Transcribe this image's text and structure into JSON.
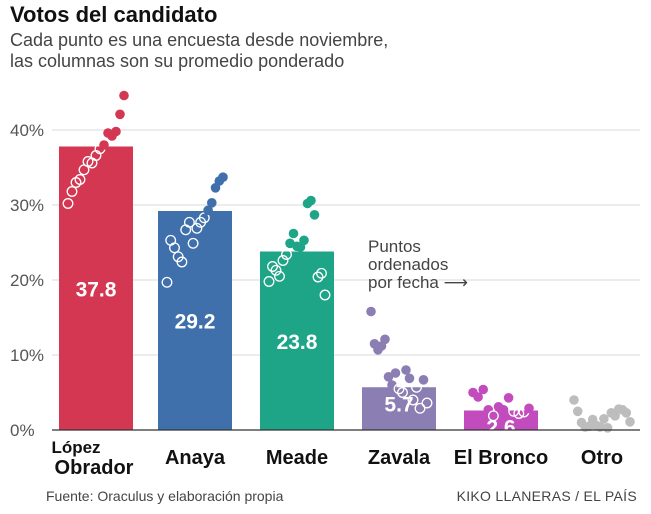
{
  "chart_data": {
    "type": "bar",
    "title": "Votos del candidato",
    "subtitle_lines": [
      "Cada punto es una encuesta desde noviembre,",
      "las columnas son su promedio ponderado"
    ],
    "ylim": [
      0,
      45
    ],
    "yticks": [
      0,
      10,
      20,
      30,
      40
    ],
    "ytick_labels": [
      "0%",
      "10%",
      "20%",
      "30%",
      "40%"
    ],
    "annotation_lines": [
      "Puntos",
      "ordenados",
      "por fecha ⟶"
    ],
    "categories": [
      {
        "label_lines": [
          "López",
          "Obrador"
        ],
        "value": 37.8,
        "value_label": "37.8",
        "color": "#d33752",
        "polls": [
          30.2,
          31.8,
          33.0,
          33.4,
          34.7,
          35.8,
          35.6,
          36.6,
          37.5,
          38.0,
          39.6,
          39.2,
          39.8,
          42.1,
          44.6
        ]
      },
      {
        "label_lines": [
          "Anaya"
        ],
        "value": 29.2,
        "value_label": "29.2",
        "color": "#3f70ac",
        "polls": [
          19.7,
          25.3,
          24.3,
          23.1,
          22.4,
          26.7,
          27.7,
          24.9,
          26.9,
          27.7,
          28.3,
          29.3,
          30.3,
          32.3,
          33.2,
          33.7
        ]
      },
      {
        "label_lines": [
          "Meade"
        ],
        "value": 23.8,
        "value_label": "23.8",
        "color": "#1ea487",
        "polls": [
          19.8,
          21.8,
          21.3,
          20.5,
          22.6,
          23.4,
          24.9,
          26.2,
          24.5,
          24.4,
          25.3,
          30.2,
          30.6,
          28.7,
          20.4,
          20.9,
          18.0
        ]
      },
      {
        "label_lines": [
          "Zavala"
        ],
        "value": 5.7,
        "value_label": "5.7",
        "color": "#8a7eb2",
        "polls": [
          15.8,
          11.5,
          10.7,
          11.2,
          12.1,
          7.1,
          6.0,
          7.6,
          5.5,
          5.0,
          8.0,
          6.9,
          4.0,
          5.7,
          2.9,
          6.7,
          3.6
        ]
      },
      {
        "label_lines": [
          "El Bronco"
        ],
        "value": 2.6,
        "value_label": "2.6",
        "color": "#c24bbd",
        "polls": [
          5.0,
          4.4,
          5.4,
          2.7,
          1.9,
          3.1,
          2.7,
          4.3,
          2.5,
          2.2,
          2.4,
          2.9
        ]
      },
      {
        "label_lines": [
          "Otro"
        ],
        "value": 0,
        "value_label": "",
        "color": "#bdbdbd",
        "polls": [
          4.0,
          2.5,
          1.0,
          0.4,
          0.5,
          1.4,
          0.6,
          0.4,
          1.5,
          0.3,
          2.3,
          1.9,
          2.8,
          2.7,
          2.3,
          1.1
        ]
      }
    ]
  },
  "footer": {
    "source": "Fuente: Oraculus y elaboración propia",
    "credit": "KIKO LLANERAS / EL PAÍS"
  }
}
